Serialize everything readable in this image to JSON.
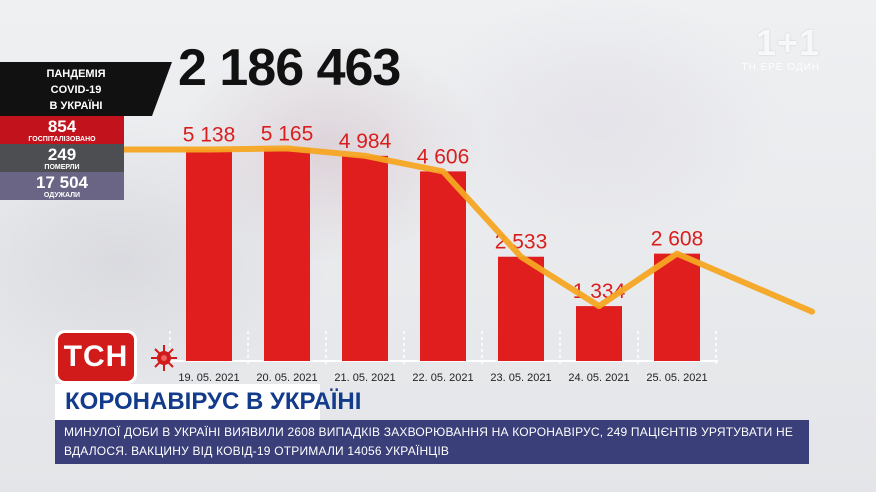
{
  "total": "2 186 463",
  "channel": {
    "logo": "1+1",
    "sub": "ТН ЕРЕ ОДИН"
  },
  "panel": {
    "title_lines": [
      "ПАНДЕМІЯ",
      "COVID-19",
      "В УКРАЇНІ"
    ],
    "hospitalized": {
      "value": "854",
      "label": "ГОСПІТАЛІЗОВАНО"
    },
    "died": {
      "value": "249",
      "label": "ПОМЕРЛИ"
    },
    "recovered": {
      "value": "17 504",
      "label": "ОДУЖАЛИ"
    }
  },
  "logo_text": "ТСН",
  "headline": "КОРОНАВІРУС В УКРАЇНІ",
  "ticker": "МИНУЛОЇ ДОБИ В УКРАЇНІ ВИЯВИЛИ 2608 ВИПАДКІВ ЗАХВОРЮВАННЯ НА КОРОНАВІРУС, 249 ПАЦІЄНТІВ УРЯТУВАТИ НЕ ВДАЛОСЯ. ВАКЦИНУ ВІД КОВІД-19 ОТРИМАЛИ 14056 УКРАЇНЦІВ",
  "colors": {
    "bar": "#e01e1e",
    "line": "#f5a623",
    "label": "#d91e1e",
    "accent": "#c2121c",
    "ticker_bg": "#3a3f7a"
  },
  "chart_data": {
    "type": "bar",
    "categories": [
      "19. 05. 2021",
      "20. 05. 2021",
      "21. 05. 2021",
      "22. 05. 2021",
      "23. 05. 2021",
      "24. 05. 2021",
      "25. 05. 2021"
    ],
    "values": [
      5138,
      5165,
      4984,
      4606,
      2533,
      1334,
      2608
    ],
    "value_labels": [
      "5 138",
      "5 165",
      "4 984",
      "4 606",
      "2 533",
      "1 334",
      "2 608"
    ],
    "trend_line": true,
    "ylim": [
      0,
      6000
    ],
    "grid": false
  }
}
